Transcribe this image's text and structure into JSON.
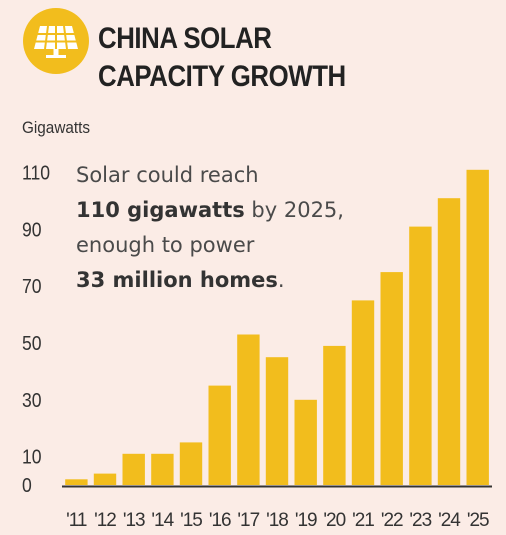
{
  "header": {
    "title_line1": "CHINA SOLAR",
    "title_line2": "CAPACITY GROWTH",
    "icon": "solar-panel-icon"
  },
  "annotation": {
    "line1": "Solar could reach",
    "line2_bold": "110 gigawatts",
    "line2_rest": " by 2025,",
    "line3": "enough to power",
    "line4_bold": "33 million homes",
    "line4_rest": "."
  },
  "colors": {
    "background": "#fbece6",
    "bar": "#f2bd1d",
    "badge": "#f2bd1d",
    "text": "#333333"
  },
  "chart_data": {
    "type": "bar",
    "title": "CHINA SOLAR CAPACITY GROWTH",
    "ylabel": "Gigawatts",
    "xlabel": "",
    "categories": [
      "'11",
      "'12",
      "'13",
      "'14",
      "'15",
      "'16",
      "'17",
      "'18",
      "'19",
      "'20",
      "'21",
      "'22",
      "'23",
      "'24",
      "'25"
    ],
    "values": [
      2,
      4,
      11,
      11,
      15,
      35,
      53,
      45,
      30,
      49,
      65,
      75,
      91,
      101,
      111
    ],
    "y_ticks": [
      0,
      10,
      30,
      50,
      70,
      90,
      110
    ],
    "ylim": [
      0,
      112
    ],
    "grid": false
  }
}
